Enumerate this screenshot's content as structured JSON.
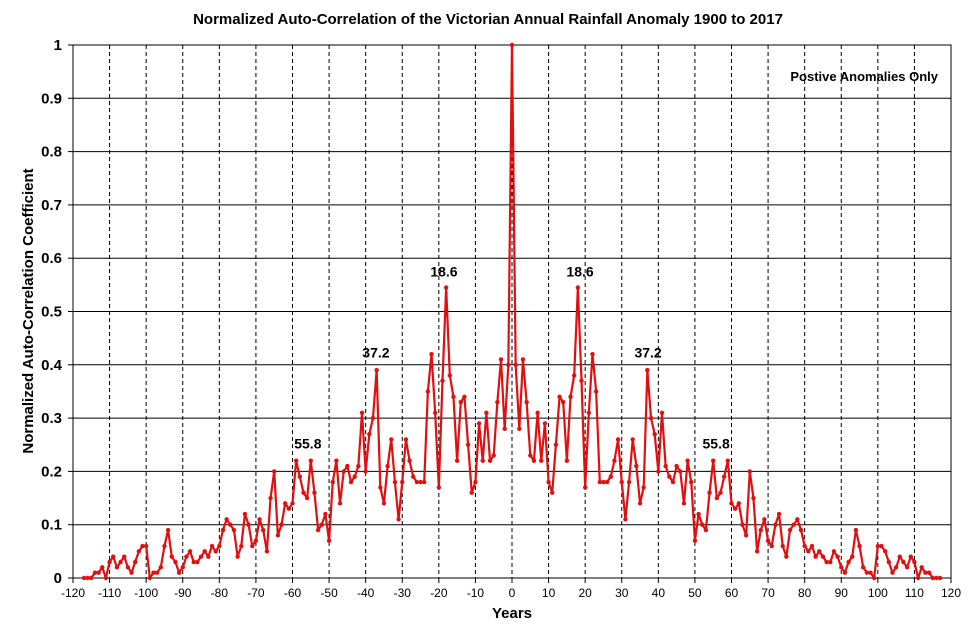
{
  "chart_data": {
    "type": "line",
    "title": "Normalized Auto-Correlation  of the Victorian Annual Rainfall Anomaly 1900 to 2017",
    "xlabel": "Years",
    "ylabel": "Normalized Auto-Correlation Coefficient",
    "xlim": [
      -120,
      120
    ],
    "ylim": [
      0,
      1
    ],
    "xticks": [
      -120,
      -110,
      -100,
      -90,
      -80,
      -70,
      -60,
      -50,
      -40,
      -30,
      -20,
      -10,
      0,
      10,
      20,
      30,
      40,
      50,
      60,
      70,
      80,
      90,
      100,
      110,
      120
    ],
    "yticks": [
      0,
      0.1,
      0.2,
      0.3,
      0.4,
      0.5,
      0.6,
      0.7,
      0.8,
      0.9,
      1
    ],
    "ytick_labels": [
      "0",
      "0.1",
      "0.2",
      "0.3",
      "0.4",
      "0.5",
      "0.6",
      "0.7",
      "0.8",
      "0.9",
      "1"
    ],
    "legend_note": "Postive Anomalies Only",
    "series_color": "#e01010",
    "series": [
      {
        "name": "Normalized auto-correlation",
        "x": [
          0,
          1,
          2,
          3,
          4,
          5,
          6,
          7,
          8,
          9,
          10,
          11,
          12,
          13,
          14,
          15,
          16,
          17,
          18,
          19,
          20,
          21,
          22,
          23,
          24,
          25,
          26,
          27,
          28,
          29,
          30,
          31,
          32,
          33,
          34,
          35,
          36,
          37,
          38,
          39,
          40,
          41,
          42,
          43,
          44,
          45,
          46,
          47,
          48,
          49,
          50,
          51,
          52,
          53,
          54,
          55,
          56,
          57,
          58,
          59,
          60,
          61,
          62,
          63,
          64,
          65,
          66,
          67,
          68,
          69,
          70,
          71,
          72,
          73,
          74,
          75,
          76,
          77,
          78,
          79,
          80,
          81,
          82,
          83,
          84,
          85,
          86,
          87,
          88,
          89,
          90,
          91,
          92,
          93,
          94,
          95,
          96,
          97,
          98,
          99,
          100,
          101,
          102,
          103,
          104,
          105,
          106,
          107,
          108,
          109,
          110,
          111,
          112,
          113,
          114,
          115,
          116,
          117
        ],
        "values_pos": [
          1.0,
          0.4,
          0.28,
          0.41,
          0.33,
          0.23,
          0.22,
          0.31,
          0.22,
          0.29,
          0.18,
          0.16,
          0.25,
          0.34,
          0.33,
          0.22,
          0.34,
          0.38,
          0.545,
          0.37,
          0.17,
          0.31,
          0.42,
          0.35,
          0.18,
          0.18,
          0.18,
          0.19,
          0.22,
          0.26,
          0.18,
          0.11,
          0.18,
          0.26,
          0.21,
          0.14,
          0.17,
          0.39,
          0.3,
          0.27,
          0.2,
          0.31,
          0.21,
          0.19,
          0.18,
          0.21,
          0.2,
          0.14,
          0.22,
          0.18,
          0.07,
          0.12,
          0.1,
          0.09,
          0.16,
          0.22,
          0.15,
          0.16,
          0.19,
          0.22,
          0.14,
          0.13,
          0.14,
          0.1,
          0.08,
          0.2,
          0.15,
          0.05,
          0.09,
          0.11,
          0.07,
          0.06,
          0.1,
          0.12,
          0.06,
          0.04,
          0.09,
          0.1,
          0.11,
          0.09,
          0.06,
          0.05,
          0.06,
          0.04,
          0.05,
          0.04,
          0.03,
          0.03,
          0.05,
          0.04,
          0.02,
          0.01,
          0.03,
          0.04,
          0.09,
          0.06,
          0.02,
          0.01,
          0.01,
          0.0,
          0.06,
          0.06,
          0.05,
          0.03,
          0.01,
          0.02,
          0.04,
          0.03,
          0.02,
          0.04,
          0.03,
          0.0,
          0.02,
          0.01,
          0.01,
          0.0,
          0.0,
          0.0
        ]
      }
    ],
    "annotations": [
      {
        "label": "18.6",
        "x": -18.6,
        "y": 0.545
      },
      {
        "label": "18.6",
        "x": 18.6,
        "y": 0.545
      },
      {
        "label": "37.2",
        "x": -37.2,
        "y": 0.393
      },
      {
        "label": "37.2",
        "x": 37.2,
        "y": 0.393
      },
      {
        "label": "55.8",
        "x": -55.8,
        "y": 0.222
      },
      {
        "label": "55.8",
        "x": 55.8,
        "y": 0.222
      }
    ]
  }
}
